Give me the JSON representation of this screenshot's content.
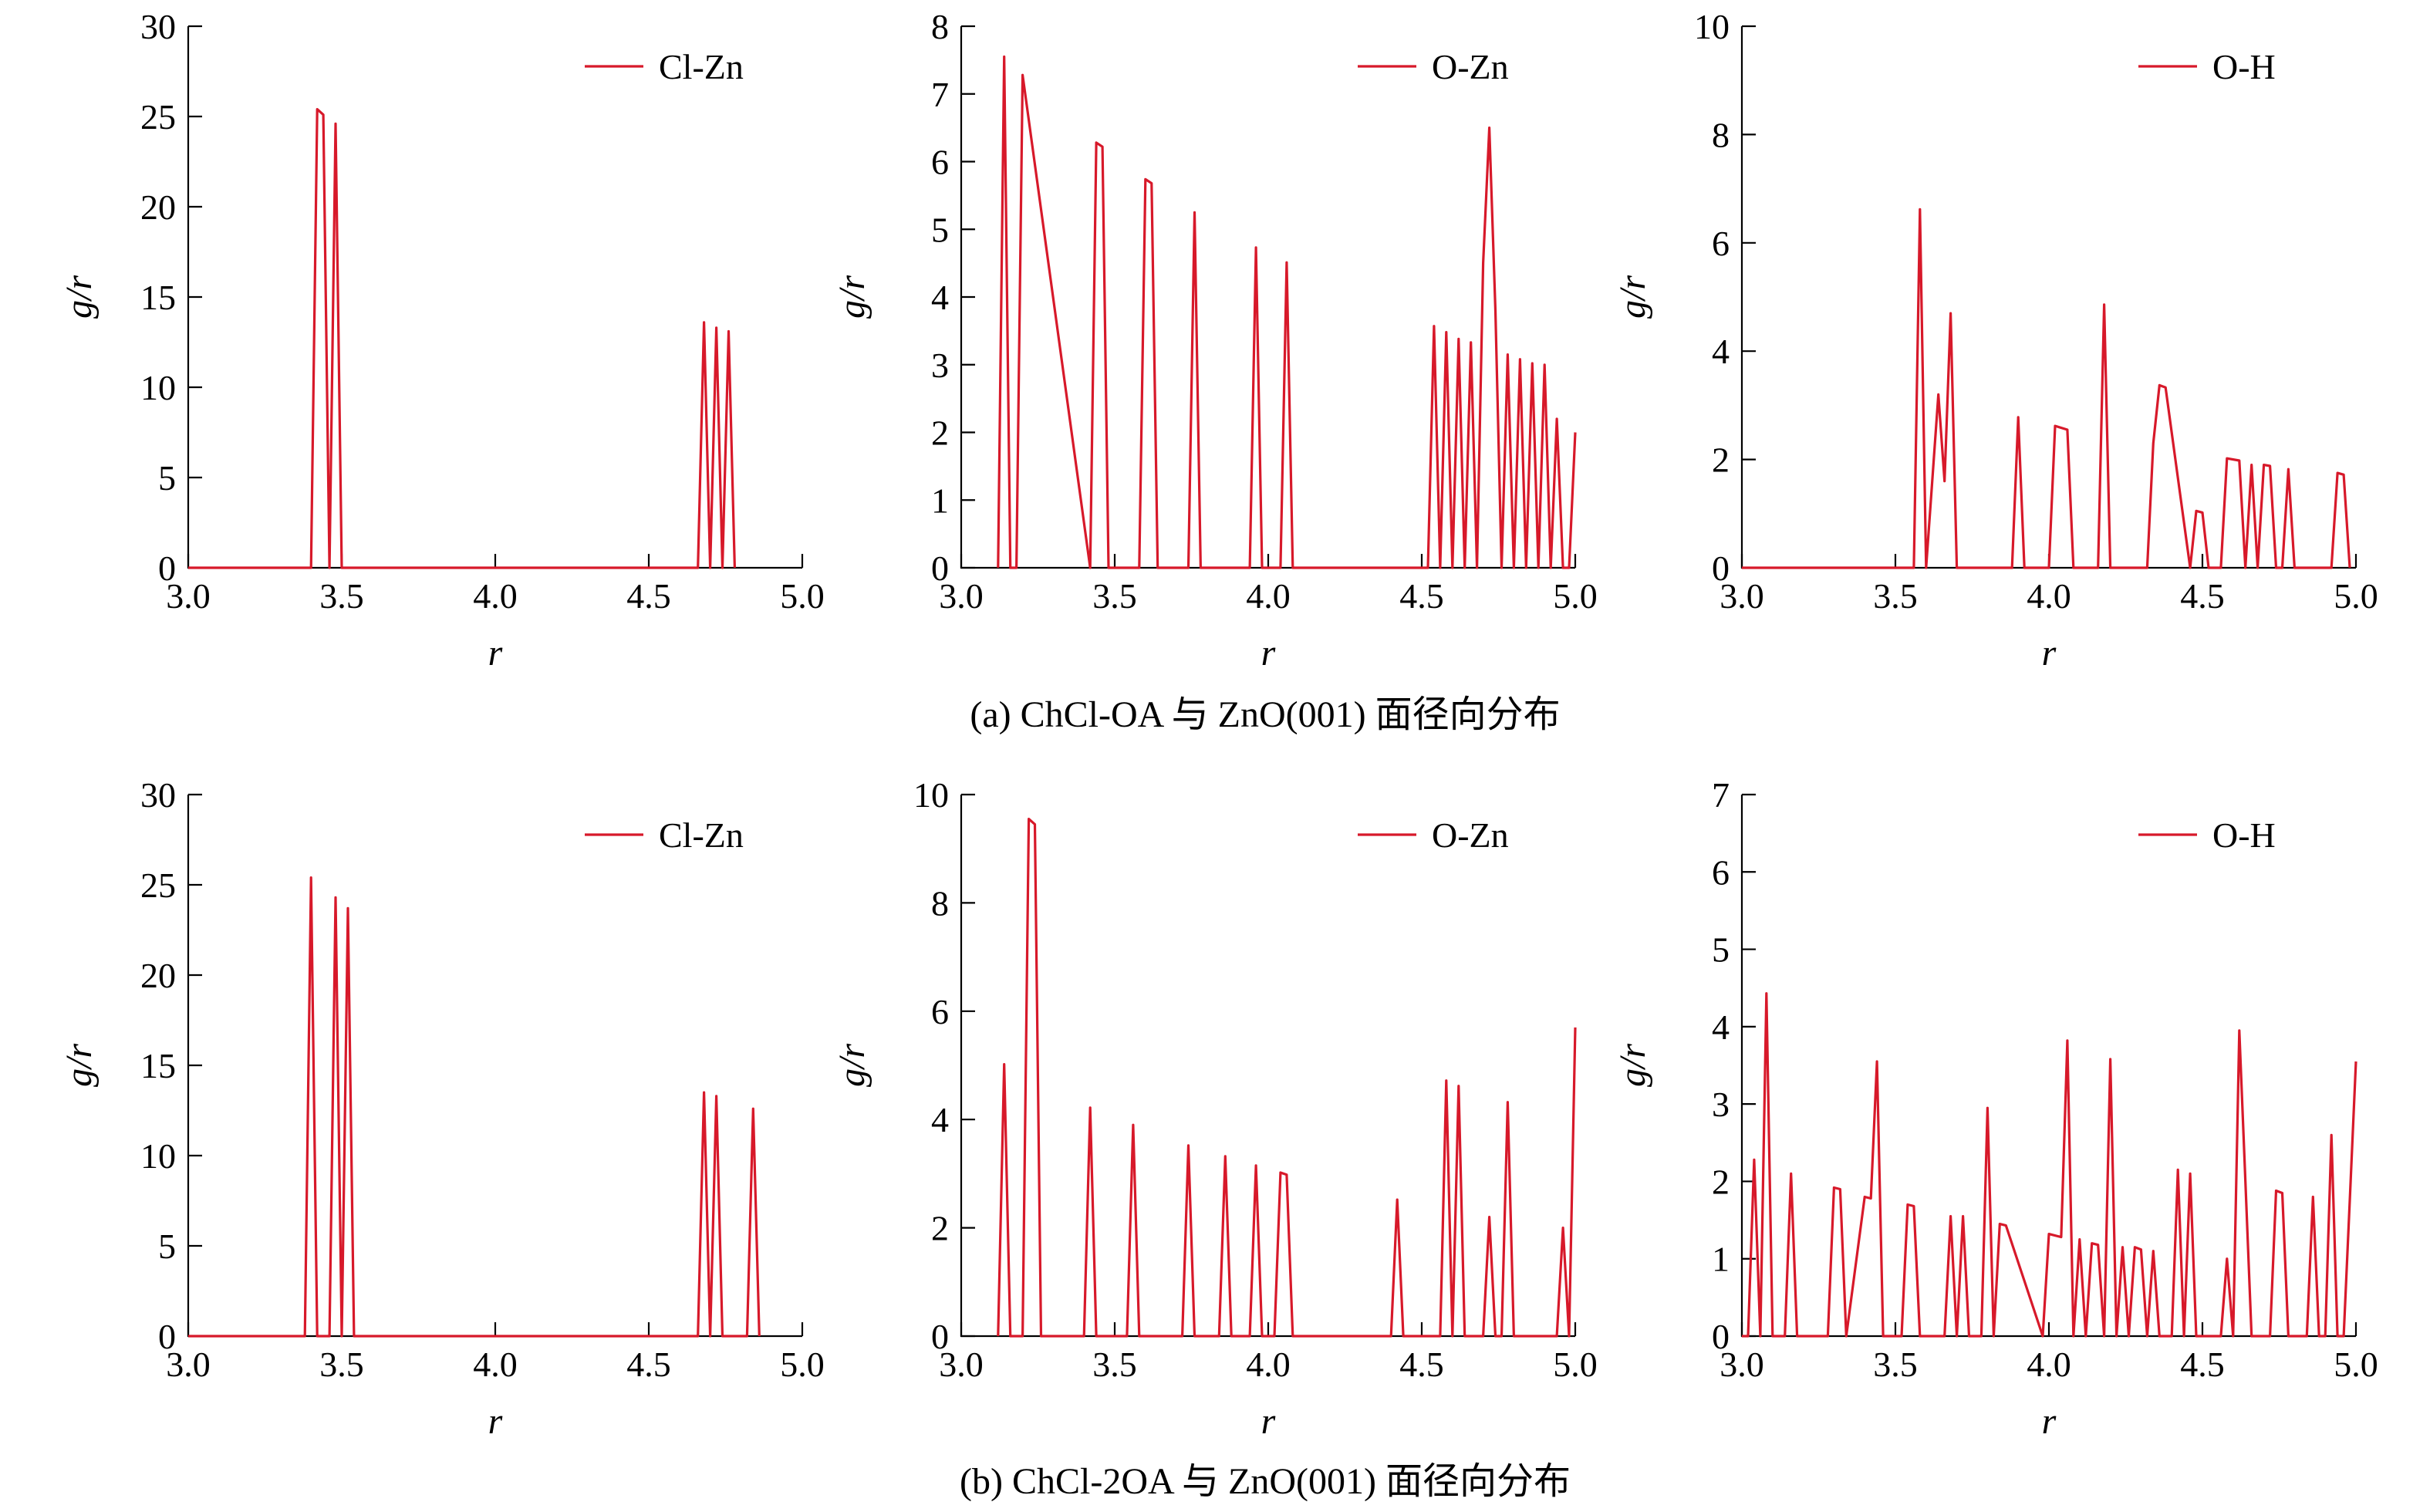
{
  "figure": {
    "captions": [
      "(a) ChCl-OA 与 ZnO(001) 面径向分布",
      "(b) ChCl-2OA 与 ZnO(001) 面径向分布"
    ]
  },
  "chart_data": [
    {
      "type": "line",
      "row": 0,
      "col": 0,
      "xlabel": "r",
      "ylabel": "g/r",
      "xlim": [
        3.0,
        5.0
      ],
      "ylim": [
        0,
        30
      ],
      "xticks": [
        "3.0",
        "3.5",
        "4.0",
        "4.5",
        "5.0"
      ],
      "yticks": [
        "0",
        "5",
        "10",
        "15",
        "20",
        "25",
        "30"
      ],
      "legend": "top-right",
      "grid": false,
      "color": "#d7192a",
      "series": [
        {
          "name": "Cl-Zn",
          "x": [
            3.0,
            3.4,
            3.42,
            3.44,
            3.46,
            3.48,
            3.5,
            4.66,
            4.68,
            4.7,
            4.72,
            4.74,
            4.76,
            4.78
          ],
          "y": [
            0,
            0,
            25.4,
            25.1,
            0,
            24.6,
            0,
            0,
            13.6,
            0,
            13.3,
            0,
            13.1,
            0
          ]
        }
      ]
    },
    {
      "type": "line",
      "row": 0,
      "col": 1,
      "xlabel": "r",
      "ylabel": "g/r",
      "xlim": [
        3.0,
        5.0
      ],
      "ylim": [
        0,
        8
      ],
      "xticks": [
        "3.0",
        "3.5",
        "4.0",
        "4.5",
        "5.0"
      ],
      "yticks": [
        "0",
        "1",
        "2",
        "3",
        "4",
        "5",
        "6",
        "7",
        "8"
      ],
      "legend": "top-right",
      "grid": false,
      "color": "#d7192a",
      "series": [
        {
          "name": "O-Zn",
          "x": [
            3.12,
            3.14,
            3.16,
            3.18,
            3.2,
            3.42,
            3.44,
            3.46,
            3.48,
            3.58,
            3.6,
            3.62,
            3.64,
            3.74,
            3.76,
            3.78,
            3.94,
            3.96,
            3.98,
            4.04,
            4.06,
            4.08,
            4.52,
            4.54,
            4.56,
            4.58,
            4.6,
            4.62,
            4.64,
            4.66,
            4.68,
            4.7,
            4.72,
            4.74,
            4.76,
            4.78,
            4.8,
            4.82,
            4.84,
            4.86,
            4.88,
            4.9,
            4.92,
            4.94,
            4.96,
            4.98,
            5.0
          ],
          "y": [
            0,
            7.55,
            0,
            0,
            7.28,
            0,
            6.28,
            6.22,
            0,
            0,
            5.74,
            5.68,
            0,
            0,
            5.25,
            0,
            0,
            4.73,
            0,
            0,
            4.51,
            0,
            0,
            3.57,
            0,
            3.48,
            0,
            3.38,
            0,
            3.33,
            0,
            4.5,
            6.5,
            3.8,
            0,
            3.15,
            0,
            3.08,
            0,
            3.02,
            0,
            3.0,
            0,
            2.2,
            0,
            0,
            2.0
          ]
        }
      ]
    },
    {
      "type": "line",
      "row": 0,
      "col": 2,
      "xlabel": "r",
      "ylabel": "g/r",
      "xlim": [
        3.0,
        5.0
      ],
      "ylim": [
        0,
        10
      ],
      "xticks": [
        "3.0",
        "3.5",
        "4.0",
        "4.5",
        "5.0"
      ],
      "yticks": [
        "0",
        "2",
        "4",
        "6",
        "8",
        "10"
      ],
      "legend": "top-right",
      "grid": false,
      "color": "#d7192a",
      "series": [
        {
          "name": "O-H",
          "x": [
            3.0,
            3.56,
            3.58,
            3.6,
            3.64,
            3.66,
            3.68,
            3.7,
            3.88,
            3.9,
            3.92,
            4.0,
            4.02,
            4.06,
            4.08,
            4.16,
            4.18,
            4.2,
            4.32,
            4.34,
            4.36,
            4.38,
            4.46,
            4.48,
            4.5,
            4.52,
            4.56,
            4.58,
            4.62,
            4.64,
            4.66,
            4.68,
            4.7,
            4.72,
            4.74,
            4.76,
            4.78,
            4.8,
            4.92,
            4.94,
            4.96,
            4.98
          ],
          "y": [
            0,
            0,
            6.62,
            0,
            3.2,
            1.6,
            4.7,
            0,
            0,
            2.78,
            0,
            0,
            2.62,
            2.55,
            0,
            0,
            4.86,
            0,
            0,
            2.3,
            3.37,
            3.33,
            0,
            1.05,
            1.02,
            0,
            0,
            2.02,
            1.98,
            0,
            1.9,
            0,
            1.9,
            1.88,
            0,
            0,
            1.82,
            0,
            0,
            1.75,
            1.72,
            0
          ]
        }
      ]
    },
    {
      "type": "line",
      "row": 1,
      "col": 0,
      "xlabel": "r",
      "ylabel": "g/r",
      "xlim": [
        3.0,
        5.0
      ],
      "ylim": [
        0,
        30
      ],
      "xticks": [
        "3.0",
        "3.5",
        "4.0",
        "4.5",
        "5.0"
      ],
      "yticks": [
        "0",
        "5",
        "10",
        "15",
        "20",
        "25",
        "30"
      ],
      "legend": "top-right",
      "grid": false,
      "color": "#d7192a",
      "series": [
        {
          "name": "Cl-Zn",
          "x": [
            3.0,
            3.38,
            3.4,
            3.42,
            3.46,
            3.48,
            3.5,
            3.52,
            3.54,
            3.56,
            4.66,
            4.68,
            4.7,
            4.72,
            4.74,
            4.76,
            4.82,
            4.84,
            4.86
          ],
          "y": [
            0,
            0,
            25.4,
            0,
            0,
            24.3,
            0,
            23.7,
            0,
            0,
            0,
            13.5,
            0,
            13.3,
            0,
            0,
            0,
            12.6,
            0
          ]
        }
      ]
    },
    {
      "type": "line",
      "row": 1,
      "col": 1,
      "xlabel": "r",
      "ylabel": "g/r",
      "xlim": [
        3.0,
        5.0
      ],
      "ylim": [
        0,
        10
      ],
      "xticks": [
        "3.0",
        "3.5",
        "4.0",
        "4.5",
        "5.0"
      ],
      "yticks": [
        "0",
        "2",
        "4",
        "6",
        "8",
        "10"
      ],
      "legend": "top-right",
      "grid": false,
      "color": "#d7192a",
      "series": [
        {
          "name": "O-Zn",
          "x": [
            3.12,
            3.14,
            3.16,
            3.2,
            3.22,
            3.24,
            3.26,
            3.4,
            3.42,
            3.44,
            3.54,
            3.56,
            3.58,
            3.72,
            3.74,
            3.76,
            3.84,
            3.86,
            3.88,
            3.94,
            3.96,
            3.98,
            4.02,
            4.04,
            4.06,
            4.08,
            4.4,
            4.42,
            4.44,
            4.56,
            4.58,
            4.6,
            4.62,
            4.64,
            4.7,
            4.72,
            4.74,
            4.76,
            4.78,
            4.8,
            4.94,
            4.96,
            4.98,
            5.0
          ],
          "y": [
            0,
            5.02,
            0,
            0,
            9.55,
            9.45,
            0,
            0,
            4.22,
            0,
            0,
            3.9,
            0,
            0,
            3.52,
            0,
            0,
            3.32,
            0,
            0,
            3.15,
            0,
            0,
            3.02,
            2.98,
            0,
            0,
            2.52,
            0,
            0,
            4.72,
            0,
            4.62,
            0,
            0,
            2.2,
            0,
            0,
            4.32,
            0,
            0,
            2.0,
            0,
            5.7
          ]
        }
      ]
    },
    {
      "type": "line",
      "row": 1,
      "col": 2,
      "xlabel": "r",
      "ylabel": "g/r",
      "xlim": [
        3.0,
        5.0
      ],
      "ylim": [
        0,
        7
      ],
      "xticks": [
        "3.0",
        "3.5",
        "4.0",
        "4.5",
        "5.0"
      ],
      "yticks": [
        "0",
        "1",
        "2",
        "3",
        "4",
        "5",
        "6",
        "7"
      ],
      "legend": "top-right",
      "grid": false,
      "color": "#d7192a",
      "series": [
        {
          "name": "O-H",
          "x": [
            3.0,
            3.02,
            3.04,
            3.06,
            3.08,
            3.1,
            3.14,
            3.16,
            3.18,
            3.28,
            3.3,
            3.32,
            3.34,
            3.4,
            3.42,
            3.44,
            3.46,
            3.52,
            3.54,
            3.56,
            3.58,
            3.66,
            3.68,
            3.7,
            3.72,
            3.74,
            3.78,
            3.8,
            3.82,
            3.84,
            3.86,
            3.98,
            4.0,
            4.04,
            4.06,
            4.08,
            4.1,
            4.12,
            4.14,
            4.16,
            4.18,
            4.2,
            4.22,
            4.24,
            4.26,
            4.28,
            4.3,
            4.32,
            4.34,
            4.36,
            4.4,
            4.42,
            4.44,
            4.46,
            4.48,
            4.56,
            4.58,
            4.6,
            4.62,
            4.64,
            4.66,
            4.72,
            4.74,
            4.76,
            4.78,
            4.84,
            4.86,
            4.88,
            4.9,
            4.92,
            4.94,
            4.96,
            4.98,
            5.0
          ],
          "y": [
            0,
            0,
            2.28,
            0,
            4.43,
            0,
            0,
            2.1,
            0,
            0,
            1.92,
            1.9,
            0,
            1.8,
            1.78,
            3.55,
            0,
            0,
            1.7,
            1.68,
            0,
            0,
            1.55,
            0,
            1.55,
            0,
            0,
            2.95,
            0,
            1.45,
            1.43,
            0,
            1.32,
            1.28,
            3.82,
            0,
            1.25,
            0,
            1.2,
            1.18,
            0,
            3.58,
            0,
            1.15,
            0,
            1.15,
            1.12,
            0,
            1.1,
            0,
            0,
            2.15,
            0,
            2.1,
            0,
            0,
            1.0,
            0,
            3.95,
            2.0,
            0,
            0,
            1.88,
            1.85,
            0,
            0,
            1.8,
            0,
            0,
            2.6,
            0,
            0,
            1.75,
            3.55
          ]
        }
      ]
    }
  ]
}
